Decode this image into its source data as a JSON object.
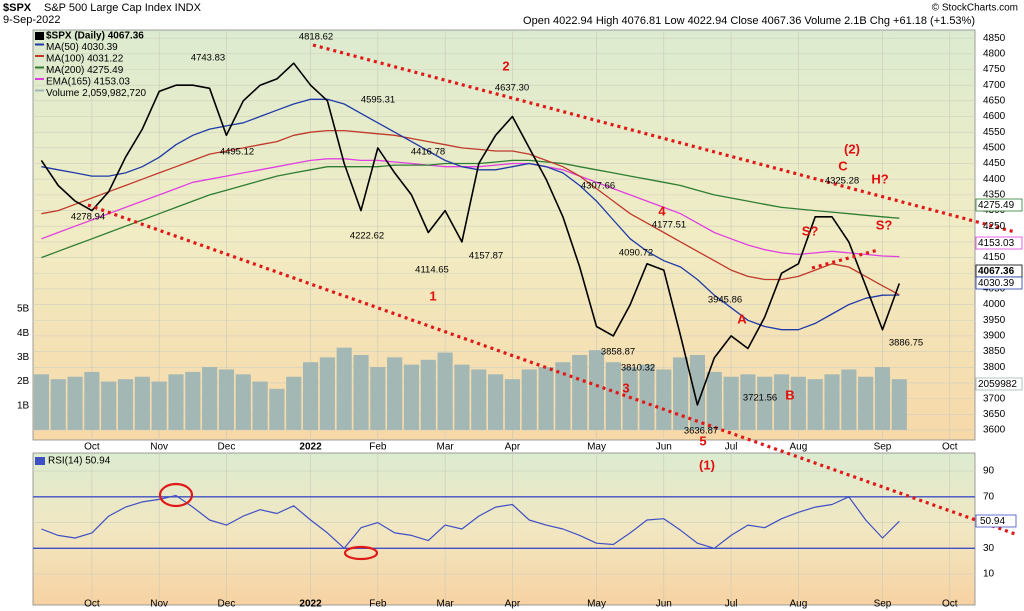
{
  "chart_data": [
    {
      "type": "line",
      "title": "$SPX",
      "subtitle": "S&P 500 Large Cap Index INDX",
      "date": "9-Sep-2022",
      "quote": "Open 4022.94 High 4076.81 Low 4022.94 Close 4067.36 Volume 2.1B Chg +61.18 (+1.53%)",
      "credit": "© StockCharts.com",
      "categories": [
        null,
        null,
        null,
        "Oct",
        null,
        null,
        null,
        "Nov",
        null,
        null,
        null,
        "Dec",
        null,
        null,
        null,
        null,
        "2022",
        null,
        null,
        null,
        "Feb",
        null,
        null,
        null,
        "Mar",
        null,
        null,
        null,
        "Apr",
        null,
        null,
        null,
        null,
        "May",
        null,
        null,
        null,
        "Jun",
        null,
        null,
        null,
        "Jul",
        null,
        null,
        null,
        "Aug",
        null,
        null,
        null,
        null,
        "Sep",
        null,
        null,
        null,
        "Oct",
        null
      ],
      "series": [
        {
          "name": "$SPX (Daily) 4067.36",
          "color": "#000000",
          "values": [
            4460,
            4380,
            4330,
            4300,
            4360,
            4470,
            4560,
            4680,
            4700,
            4700,
            4690,
            4540,
            4650,
            4700,
            4720,
            4770,
            4700,
            4650,
            4450,
            4300,
            4500,
            4420,
            4350,
            4230,
            4300,
            4200,
            4450,
            4540,
            4600,
            4500,
            4400,
            4280,
            4120,
            3930,
            3900,
            4000,
            4130,
            4110,
            3900,
            3680,
            3830,
            3900,
            3860,
            3960,
            4100,
            4130,
            4280,
            4280,
            4200,
            4060,
            3920,
            4067.36,
            null,
            null,
            null,
            null
          ]
        },
        {
          "name": "MA(50) 4030.39",
          "color": "#1f3aa8",
          "values": [
            4440,
            4430,
            4420,
            4410,
            4410,
            4420,
            4440,
            4470,
            4510,
            4540,
            4560,
            4570,
            4580,
            4600,
            4620,
            4640,
            4655,
            4655,
            4640,
            4610,
            4580,
            4550,
            4520,
            4490,
            4460,
            4440,
            4430,
            4430,
            4440,
            4450,
            4440,
            4420,
            4380,
            4330,
            4270,
            4210,
            4170,
            4140,
            4120,
            4080,
            4030,
            3990,
            3950,
            3930,
            3920,
            3920,
            3940,
            3970,
            4000,
            4020,
            4030,
            4030.39,
            null,
            null,
            null,
            null
          ]
        },
        {
          "name": "MA(100) 4031.22",
          "color": "#c0392b",
          "values": [
            4290,
            4300,
            4320,
            4340,
            4360,
            4380,
            4400,
            4420,
            4440,
            4460,
            4480,
            4490,
            4500,
            4510,
            4520,
            4540,
            4550,
            4555,
            4555,
            4550,
            4545,
            4540,
            4530,
            4520,
            4510,
            4500,
            4495,
            4490,
            4490,
            4480,
            4460,
            4440,
            4410,
            4370,
            4330,
            4290,
            4260,
            4230,
            4200,
            4170,
            4140,
            4110,
            4090,
            4080,
            4080,
            4090,
            4110,
            4130,
            4120,
            4090,
            4060,
            4031.22,
            null,
            null,
            null,
            null
          ]
        },
        {
          "name": "MA(200) 4275.49",
          "color": "#2e7d32",
          "values": [
            4150,
            4170,
            4190,
            4210,
            4230,
            4250,
            4270,
            4290,
            4310,
            4330,
            4350,
            4365,
            4380,
            4395,
            4410,
            4420,
            4430,
            4440,
            4440,
            4440,
            4440,
            4445,
            4445,
            4445,
            4450,
            4450,
            4450,
            4455,
            4460,
            4460,
            4455,
            4450,
            4440,
            4430,
            4420,
            4410,
            4400,
            4390,
            4380,
            4365,
            4350,
            4340,
            4330,
            4320,
            4310,
            4305,
            4300,
            4295,
            4290,
            4285,
            4280,
            4275.49,
            null,
            null,
            null,
            null
          ]
        },
        {
          "name": "EMA(165) 4153.03",
          "color": "#e040e0",
          "values": [
            4210,
            4230,
            4250,
            4270,
            4290,
            4310,
            4330,
            4350,
            4370,
            4390,
            4400,
            4410,
            4420,
            4430,
            4440,
            4450,
            4460,
            4465,
            4465,
            4460,
            4460,
            4455,
            4450,
            4445,
            4440,
            4440,
            4440,
            4445,
            4450,
            4450,
            4440,
            4430,
            4410,
            4390,
            4370,
            4350,
            4330,
            4310,
            4290,
            4260,
            4230,
            4210,
            4190,
            4175,
            4165,
            4160,
            4165,
            4170,
            4165,
            4160,
            4155,
            4153.03,
            null,
            null,
            null,
            null
          ]
        },
        {
          "name": "Volume 2,059,982,720",
          "color": "#a3b8b4",
          "type": "bar",
          "axis": "y2",
          "values": [
            2.3,
            2.1,
            2.2,
            2.4,
            2.0,
            2.1,
            2.2,
            2.0,
            2.3,
            2.4,
            2.6,
            2.5,
            2.3,
            2.0,
            1.7,
            2.2,
            2.8,
            3.0,
            3.4,
            3.1,
            2.6,
            3.0,
            2.7,
            2.9,
            3.2,
            2.7,
            2.5,
            2.3,
            2.1,
            2.5,
            2.6,
            2.8,
            3.1,
            3.3,
            2.8,
            2.6,
            2.7,
            2.5,
            3.0,
            3.1,
            2.4,
            2.2,
            2.3,
            2.2,
            2.3,
            2.2,
            2.1,
            2.3,
            2.5,
            2.2,
            2.6,
            2.1,
            null,
            null,
            null,
            null
          ]
        }
      ],
      "ylim": [
        3568,
        4876
      ],
      "yticks": [
        3600,
        3650,
        3700,
        3750,
        3800,
        3850,
        3900,
        3950,
        4000,
        4050,
        4100,
        4150,
        4200,
        4250,
        4300,
        4350,
        4400,
        4450,
        4500,
        4550,
        4600,
        4650,
        4700,
        4750,
        4800,
        4850
      ],
      "y2lim": [
        -0.25,
        16.7
      ],
      "y2ticks": [
        {
          "value": 1,
          "label": "1B"
        },
        {
          "value": 2,
          "label": "2B"
        },
        {
          "value": 3,
          "label": "3B"
        },
        {
          "value": 4,
          "label": "4B"
        },
        {
          "value": 5,
          "label": "5B"
        }
      ],
      "grid": true,
      "last_value_labels": [
        "4275.49",
        "4153.03",
        "4067.36",
        "4030.39",
        "2059982"
      ],
      "annotations": [
        "4818.62",
        "4743.83",
        "4595.31",
        "4637.30",
        "4495.12",
        "4416.78",
        "4278.94",
        "4307.66",
        "4222.62",
        "4177.51",
        "4114.65",
        "4157.87",
        "4090.72",
        "3945.86",
        "3858.87",
        "3810.32",
        "3721.56",
        "3636.87",
        "4325.28",
        "3886.75"
      ],
      "wave_labels": [
        "2",
        "1",
        "3",
        "4",
        "5",
        "(1)",
        "A",
        "B",
        "C",
        "(2)",
        "S?",
        "H?",
        "S?"
      ]
    },
    {
      "type": "line",
      "title": "RSI(14) 50.94",
      "categories": [
        null,
        null,
        null,
        "Oct",
        null,
        null,
        null,
        "Nov",
        null,
        null,
        null,
        "Dec",
        null,
        null,
        null,
        null,
        "2022",
        null,
        null,
        null,
        "Feb",
        null,
        null,
        null,
        "Mar",
        null,
        null,
        null,
        "Apr",
        null,
        null,
        null,
        null,
        "May",
        null,
        null,
        null,
        "Jun",
        null,
        null,
        null,
        "Jul",
        null,
        null,
        null,
        "Aug",
        null,
        null,
        null,
        null,
        "Sep",
        null,
        null,
        null,
        "Oct",
        null
      ],
      "values": [
        45,
        40,
        38,
        42,
        55,
        62,
        66,
        68,
        71,
        62,
        52,
        48,
        55,
        60,
        57,
        63,
        52,
        42,
        30,
        46,
        50,
        42,
        40,
        36,
        48,
        45,
        55,
        62,
        64,
        52,
        48,
        45,
        40,
        34,
        33,
        42,
        52,
        53,
        44,
        34,
        30,
        40,
        48,
        46,
        53,
        58,
        62,
        64,
        70,
        52,
        38,
        50.94,
        null,
        null,
        null,
        null
      ],
      "color": "#3f4fc4",
      "ylim": [
        -14,
        104
      ],
      "yticks": [
        10,
        30,
        50,
        70,
        90
      ],
      "levels": [
        30,
        70
      ],
      "last_value_labels": [
        "50.94"
      ]
    }
  ]
}
